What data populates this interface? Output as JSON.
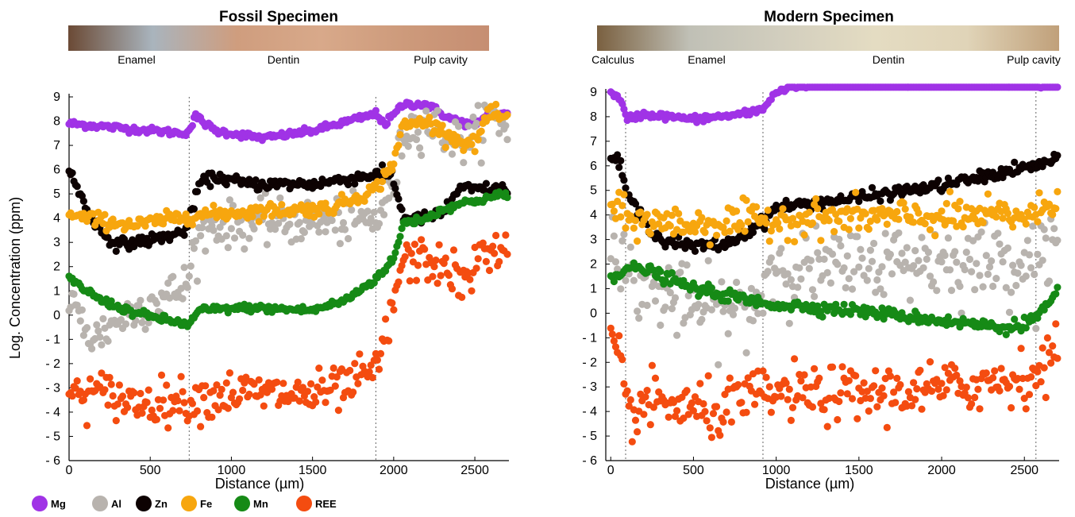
{
  "ylabel": "Log. Concentration (ppm)",
  "colors": {
    "Mg": "#a033e6",
    "Al": "#b8b3ae",
    "Zn": "#0d0202",
    "Fe": "#f7a60e",
    "Mn": "#168a16",
    "REE": "#f44c10"
  },
  "legend": [
    {
      "key": "Mg",
      "label": "Mg"
    },
    {
      "key": "Al",
      "label": "Al"
    },
    {
      "key": "Zn",
      "label": "Zn"
    },
    {
      "key": "Fe",
      "label": "Fe"
    },
    {
      "key": "Mn",
      "label": "Mn"
    },
    {
      "key": "REE",
      "label": "REE"
    }
  ],
  "chart_data": [
    {
      "type": "scatter",
      "title": "Fossil Specimen",
      "xlabel": "Distance (µm)",
      "ylabel": "Log. Concentration (ppm)",
      "xlim": [
        0,
        2710
      ],
      "ylim": [
        -6,
        9
      ],
      "xticks": [
        0,
        500,
        1000,
        1500,
        2000,
        2500
      ],
      "yticks": [
        9,
        8,
        7,
        6,
        5,
        4,
        3,
        2,
        1,
        0,
        -1,
        -2,
        -3,
        -4,
        -5,
        -6
      ],
      "ytick_labels": [
        "9",
        "8",
        "7",
        "6",
        "5",
        "4",
        "3",
        "2",
        "1",
        "0",
        "- 1",
        "- 2",
        "- 3",
        "- 4",
        "- 5",
        "- 6"
      ],
      "boundaries": [
        740,
        1890
      ],
      "regions": [
        "Enamel",
        "Dentin",
        "Pulp cavity"
      ],
      "strip_colors": [
        "#6b4a35",
        "#a9b4bd",
        "#cf9d7e",
        "#d8a98a",
        "#cd9a7b",
        "#c68e72"
      ],
      "grid": false,
      "series": [
        {
          "name": "Mg",
          "color_key": "Mg",
          "noise": 0.07,
          "points": [
            [
              0,
              7.9
            ],
            [
              350,
              7.7
            ],
            [
              700,
              7.5
            ],
            [
              740,
              7.6
            ],
            [
              780,
              8.2
            ],
            [
              900,
              7.6
            ],
            [
              1200,
              7.3
            ],
            [
              1500,
              7.6
            ],
            [
              1890,
              8.3
            ],
            [
              1950,
              7.9
            ],
            [
              2060,
              8.7
            ],
            [
              2200,
              8.7
            ],
            [
              2350,
              8.1
            ],
            [
              2450,
              7.9
            ],
            [
              2530,
              7.9
            ],
            [
              2580,
              8.3
            ],
            [
              2700,
              8.3
            ]
          ]
        },
        {
          "name": "Al",
          "color_key": "Al",
          "noise": 0.45,
          "points": [
            [
              0,
              0.6
            ],
            [
              150,
              -1.0
            ],
            [
              300,
              -0.2
            ],
            [
              500,
              0.5
            ],
            [
              700,
              1.1
            ],
            [
              740,
              1.5
            ],
            [
              760,
              2.6
            ],
            [
              850,
              3.7
            ],
            [
              1200,
              3.8
            ],
            [
              1890,
              3.9
            ],
            [
              2000,
              5.3
            ],
            [
              2060,
              7.5
            ],
            [
              2200,
              8.0
            ],
            [
              2400,
              7.1
            ],
            [
              2500,
              7.4
            ],
            [
              2580,
              8.2
            ],
            [
              2700,
              7.8
            ]
          ]
        },
        {
          "name": "Zn",
          "color_key": "Zn",
          "noise": 0.12,
          "points": [
            [
              0,
              6.0
            ],
            [
              100,
              4.5
            ],
            [
              200,
              3.4
            ],
            [
              300,
              2.9
            ],
            [
              500,
              3.1
            ],
            [
              700,
              3.4
            ],
            [
              740,
              3.8
            ],
            [
              800,
              5.4
            ],
            [
              900,
              5.7
            ],
            [
              1100,
              5.4
            ],
            [
              1500,
              5.4
            ],
            [
              1890,
              5.8
            ],
            [
              1990,
              5.8
            ],
            [
              2060,
              4.0
            ],
            [
              2200,
              4.0
            ],
            [
              2300,
              4.2
            ],
            [
              2400,
              5.2
            ],
            [
              2700,
              5.2
            ]
          ]
        },
        {
          "name": "Fe",
          "color_key": "Fe",
          "noise": 0.15,
          "points": [
            [
              0,
              4.1
            ],
            [
              200,
              3.9
            ],
            [
              400,
              3.7
            ],
            [
              740,
              4.1
            ],
            [
              1200,
              4.3
            ],
            [
              1600,
              4.4
            ],
            [
              1890,
              5.2
            ],
            [
              1990,
              6.2
            ],
            [
              2060,
              7.8
            ],
            [
              2200,
              8.0
            ],
            [
              2400,
              7.2
            ],
            [
              2500,
              7.0
            ],
            [
              2580,
              8.3
            ],
            [
              2700,
              8.1
            ]
          ]
        },
        {
          "name": "Mn",
          "color_key": "Mn",
          "noise": 0.08,
          "points": [
            [
              0,
              1.5
            ],
            [
              200,
              0.6
            ],
            [
              400,
              0.1
            ],
            [
              600,
              -0.2
            ],
            [
              740,
              -0.4
            ],
            [
              800,
              0.2
            ],
            [
              1100,
              0.3
            ],
            [
              1500,
              0.2
            ],
            [
              1700,
              0.6
            ],
            [
              1890,
              1.5
            ],
            [
              2000,
              2.3
            ],
            [
              2060,
              3.8
            ],
            [
              2200,
              4.0
            ],
            [
              2350,
              4.5
            ],
            [
              2700,
              5.0
            ]
          ]
        },
        {
          "name": "REE",
          "color_key": "REE",
          "noise": 0.45,
          "points": [
            [
              0,
              -3.3
            ],
            [
              200,
              -3.2
            ],
            [
              400,
              -3.6
            ],
            [
              740,
              -3.5
            ],
            [
              1000,
              -3.2
            ],
            [
              1500,
              -3.3
            ],
            [
              1700,
              -3.0
            ],
            [
              1890,
              -2.3
            ],
            [
              1970,
              -0.5
            ],
            [
              2050,
              2.2
            ],
            [
              2200,
              2.3
            ],
            [
              2350,
              1.8
            ],
            [
              2450,
              1.2
            ],
            [
              2550,
              2.8
            ],
            [
              2700,
              2.5
            ]
          ]
        }
      ]
    },
    {
      "type": "scatter",
      "title": "Modern Specimen",
      "xlabel": "Distance (µm)",
      "ylabel": "",
      "xlim": [
        -30,
        2710
      ],
      "ylim": [
        -6,
        9
      ],
      "xticks": [
        0,
        500,
        1000,
        1500,
        2000,
        2500
      ],
      "yticks": [
        9,
        8,
        7,
        6,
        5,
        4,
        3,
        2,
        1,
        0,
        -1,
        -2,
        -3,
        -4,
        -5,
        -6
      ],
      "ytick_labels": [
        "9",
        "8",
        "7",
        "6",
        "5",
        "4",
        "3",
        "2",
        "1",
        "0",
        "- 1",
        "- 2",
        "- 3",
        "- 4",
        "- 5",
        "- 6"
      ],
      "boundaries": [
        90,
        920,
        2570
      ],
      "regions": [
        "Calculus",
        "Enamel",
        "Dentin",
        "Pulp cavity"
      ],
      "strip_colors": [
        "#7a6040",
        "#c0c0b6",
        "#d2cebe",
        "#e4dcc2",
        "#e0d4b8",
        "#c0a07a"
      ],
      "grid": false,
      "series": [
        {
          "name": "Mg",
          "color_key": "Mg",
          "noise": 0.07,
          "points": [
            [
              0,
              9.1
            ],
            [
              60,
              8.6
            ],
            [
              100,
              7.9
            ],
            [
              200,
              8.1
            ],
            [
              500,
              7.9
            ],
            [
              800,
              8.1
            ],
            [
              920,
              8.3
            ],
            [
              980,
              8.9
            ],
            [
              1100,
              9.3
            ],
            [
              1500,
              9.4
            ],
            [
              1800,
              9.6
            ],
            [
              2000,
              9.6
            ],
            [
              2200,
              9.4
            ],
            [
              2570,
              9.3
            ],
            [
              2700,
              9.3
            ]
          ]
        },
        {
          "name": "Al",
          "color_key": "Al",
          "noise": 0.75,
          "points": [
            [
              0,
              3.8
            ],
            [
              100,
              1.5
            ],
            [
              300,
              0.8
            ],
            [
              500,
              0.2
            ],
            [
              800,
              0.1
            ],
            [
              920,
              0.6
            ],
            [
              940,
              2.0
            ],
            [
              1400,
              1.8
            ],
            [
              1800,
              2.2
            ],
            [
              2200,
              2.1
            ],
            [
              2570,
              2.2
            ],
            [
              2700,
              3.2
            ]
          ]
        },
        {
          "name": "Zn",
          "color_key": "Zn",
          "noise": 0.12,
          "points": [
            [
              0,
              6.4
            ],
            [
              60,
              6.0
            ],
            [
              100,
              4.8
            ],
            [
              200,
              3.8
            ],
            [
              300,
              3.0
            ],
            [
              500,
              2.7
            ],
            [
              700,
              2.8
            ],
            [
              920,
              3.7
            ],
            [
              1000,
              4.3
            ],
            [
              1500,
              4.7
            ],
            [
              2000,
              5.2
            ],
            [
              2570,
              6.0
            ],
            [
              2700,
              6.3
            ]
          ]
        },
        {
          "name": "Fe",
          "color_key": "Fe",
          "noise": 0.35,
          "points": [
            [
              0,
              4.4
            ],
            [
              100,
              3.8
            ],
            [
              500,
              3.6
            ],
            [
              920,
              3.8
            ],
            [
              1500,
              3.9
            ],
            [
              2000,
              3.9
            ],
            [
              2570,
              4.0
            ],
            [
              2700,
              4.7
            ]
          ]
        },
        {
          "name": "Mn",
          "color_key": "Mn",
          "noise": 0.12,
          "points": [
            [
              0,
              1.5
            ],
            [
              100,
              1.8
            ],
            [
              200,
              1.8
            ],
            [
              500,
              1.0
            ],
            [
              920,
              0.4
            ],
            [
              1500,
              0.1
            ],
            [
              2000,
              -0.3
            ],
            [
              2400,
              -0.6
            ],
            [
              2570,
              -0.2
            ],
            [
              2700,
              0.8
            ]
          ]
        },
        {
          "name": "REE",
          "color_key": "REE",
          "noise": 0.55,
          "points": [
            [
              0,
              -1.2
            ],
            [
              50,
              -2.0
            ],
            [
              100,
              -4.0
            ],
            [
              300,
              -3.6
            ],
            [
              600,
              -4.1
            ],
            [
              920,
              -3.3
            ],
            [
              1500,
              -3.3
            ],
            [
              2000,
              -3.1
            ],
            [
              2570,
              -2.5
            ],
            [
              2700,
              -1.6
            ]
          ]
        }
      ]
    }
  ]
}
